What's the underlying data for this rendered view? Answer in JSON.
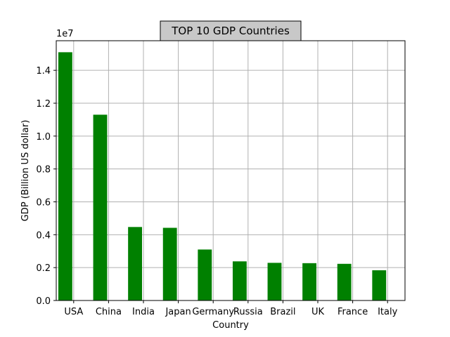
{
  "chart_data": {
    "type": "bar",
    "title": "TOP 10 GDP Countries",
    "xlabel": "Country",
    "ylabel": "GDP (Billion US dollar)",
    "y_multiplier_label": "1e7",
    "categories": [
      "USA",
      "China",
      "India",
      "Japan",
      "Germany",
      "Russia",
      "Brazil",
      "UK",
      "France",
      "Italy"
    ],
    "values": [
      15100000,
      11300000,
      4470000,
      4420000,
      3100000,
      2380000,
      2290000,
      2270000,
      2230000,
      1840000
    ],
    "ylim": [
      0,
      15800000
    ],
    "yticks": [
      0,
      2000000,
      4000000,
      6000000,
      8000000,
      10000000,
      12000000,
      14000000
    ],
    "ytick_labels": [
      "0.0",
      "0.2",
      "0.4",
      "0.6",
      "0.8",
      "1.0",
      "1.2",
      "1.4"
    ],
    "grid": true,
    "colors": {
      "bar": "#008000",
      "grid": "#b0b0b0",
      "title_box_fill": "#c8c8c8"
    }
  }
}
